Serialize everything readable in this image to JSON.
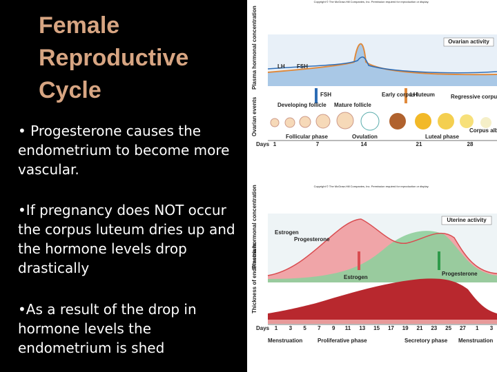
{
  "title": "Female Reproductive Cycle",
  "bullets": [
    "• Progesterone causes the endometrium to become more vascular.",
    "•If pregnancy does NOT occur the corpus luteum dries up and the hormone levels drop drastically",
    "•As a result of the drop in hormone levels the endometrium is shed"
  ],
  "ovarian_figure": {
    "copyright": "Copyright © The McGraw-Hill Companies, Inc. Permission required for reproduction or display.",
    "y_label": "Plasma hormonal concentration",
    "panel_label": "Ovarian activity",
    "curve_labels": [
      "LH",
      "FSH"
    ],
    "events_label": "Ovarian events",
    "arrow_labels": [
      "FSH",
      "LH"
    ],
    "stages": [
      "Developing follicle",
      "Mature follicle",
      "Early corpus luteum",
      "Regressive corpus luteum",
      "Corpus albicans"
    ],
    "phases": [
      "Follicular phase",
      "Ovulation",
      "Luteal phase"
    ],
    "days_label": "Days",
    "days": [
      "1",
      "7",
      "14",
      "21",
      "28"
    ]
  },
  "uterine_figure": {
    "copyright": "Copyright © The McGraw-Hill Companies, Inc. Permission required for reproduction or display.",
    "y_label": "Plasma hormonal concentration",
    "panel_label": "Uterine activity",
    "curve_labels": [
      "Estrogen",
      "Progesterone"
    ],
    "arrow_labels": [
      "Estrogen",
      "Progesterone"
    ],
    "thickness_label": "Thickness of endometrium",
    "days_label": "Days",
    "days": [
      "1",
      "3",
      "5",
      "7",
      "9",
      "11",
      "13",
      "15",
      "17",
      "19",
      "21",
      "23",
      "25",
      "27",
      "1",
      "3"
    ],
    "phases": [
      "Menstruation",
      "Proliferative phase",
      "Secretory phase",
      "Menstruation"
    ]
  }
}
